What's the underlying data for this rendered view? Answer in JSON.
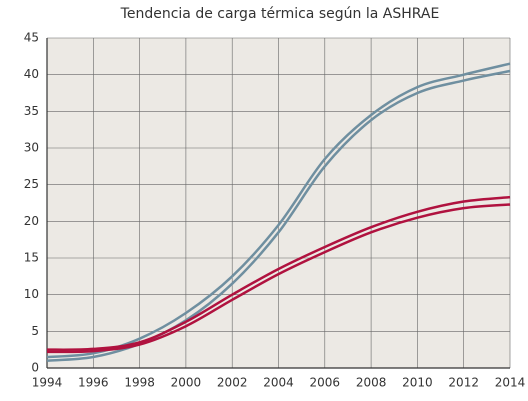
{
  "chart_data": {
    "type": "line",
    "title": "Tendencia de carga térmica según la ASHRAE",
    "x": [
      1994,
      1996,
      1998,
      2000,
      2002,
      2004,
      2006,
      2008,
      2010,
      2012,
      2014
    ],
    "series": [
      {
        "color": "#6f8fa0",
        "values": [
          1.5,
          2.0,
          4.0,
          7.5,
          12.5,
          19.5,
          28.5,
          34.5,
          38.3,
          40.0,
          41.5
        ]
      },
      {
        "color": "#6f8fa0",
        "values": [
          1.0,
          1.5,
          3.3,
          6.5,
          11.5,
          18.5,
          27.5,
          33.8,
          37.5,
          39.2,
          40.5
        ]
      },
      {
        "color": "#b0123f",
        "values": [
          2.5,
          2.6,
          3.5,
          6.3,
          10.0,
          13.5,
          16.5,
          19.2,
          21.3,
          22.7,
          23.3
        ]
      },
      {
        "color": "#b0123f",
        "values": [
          2.2,
          2.3,
          3.2,
          5.7,
          9.3,
          12.8,
          15.8,
          18.5,
          20.5,
          21.8,
          22.3
        ]
      }
    ],
    "xlim": [
      1994,
      2014
    ],
    "xticks": [
      1994,
      1996,
      1998,
      2000,
      2002,
      2004,
      2006,
      2008,
      2010,
      2012,
      2014
    ],
    "ylim": [
      0,
      45
    ],
    "yticks": [
      0,
      5,
      10,
      15,
      20,
      25,
      30,
      35,
      40,
      45
    ],
    "grid": true
  }
}
